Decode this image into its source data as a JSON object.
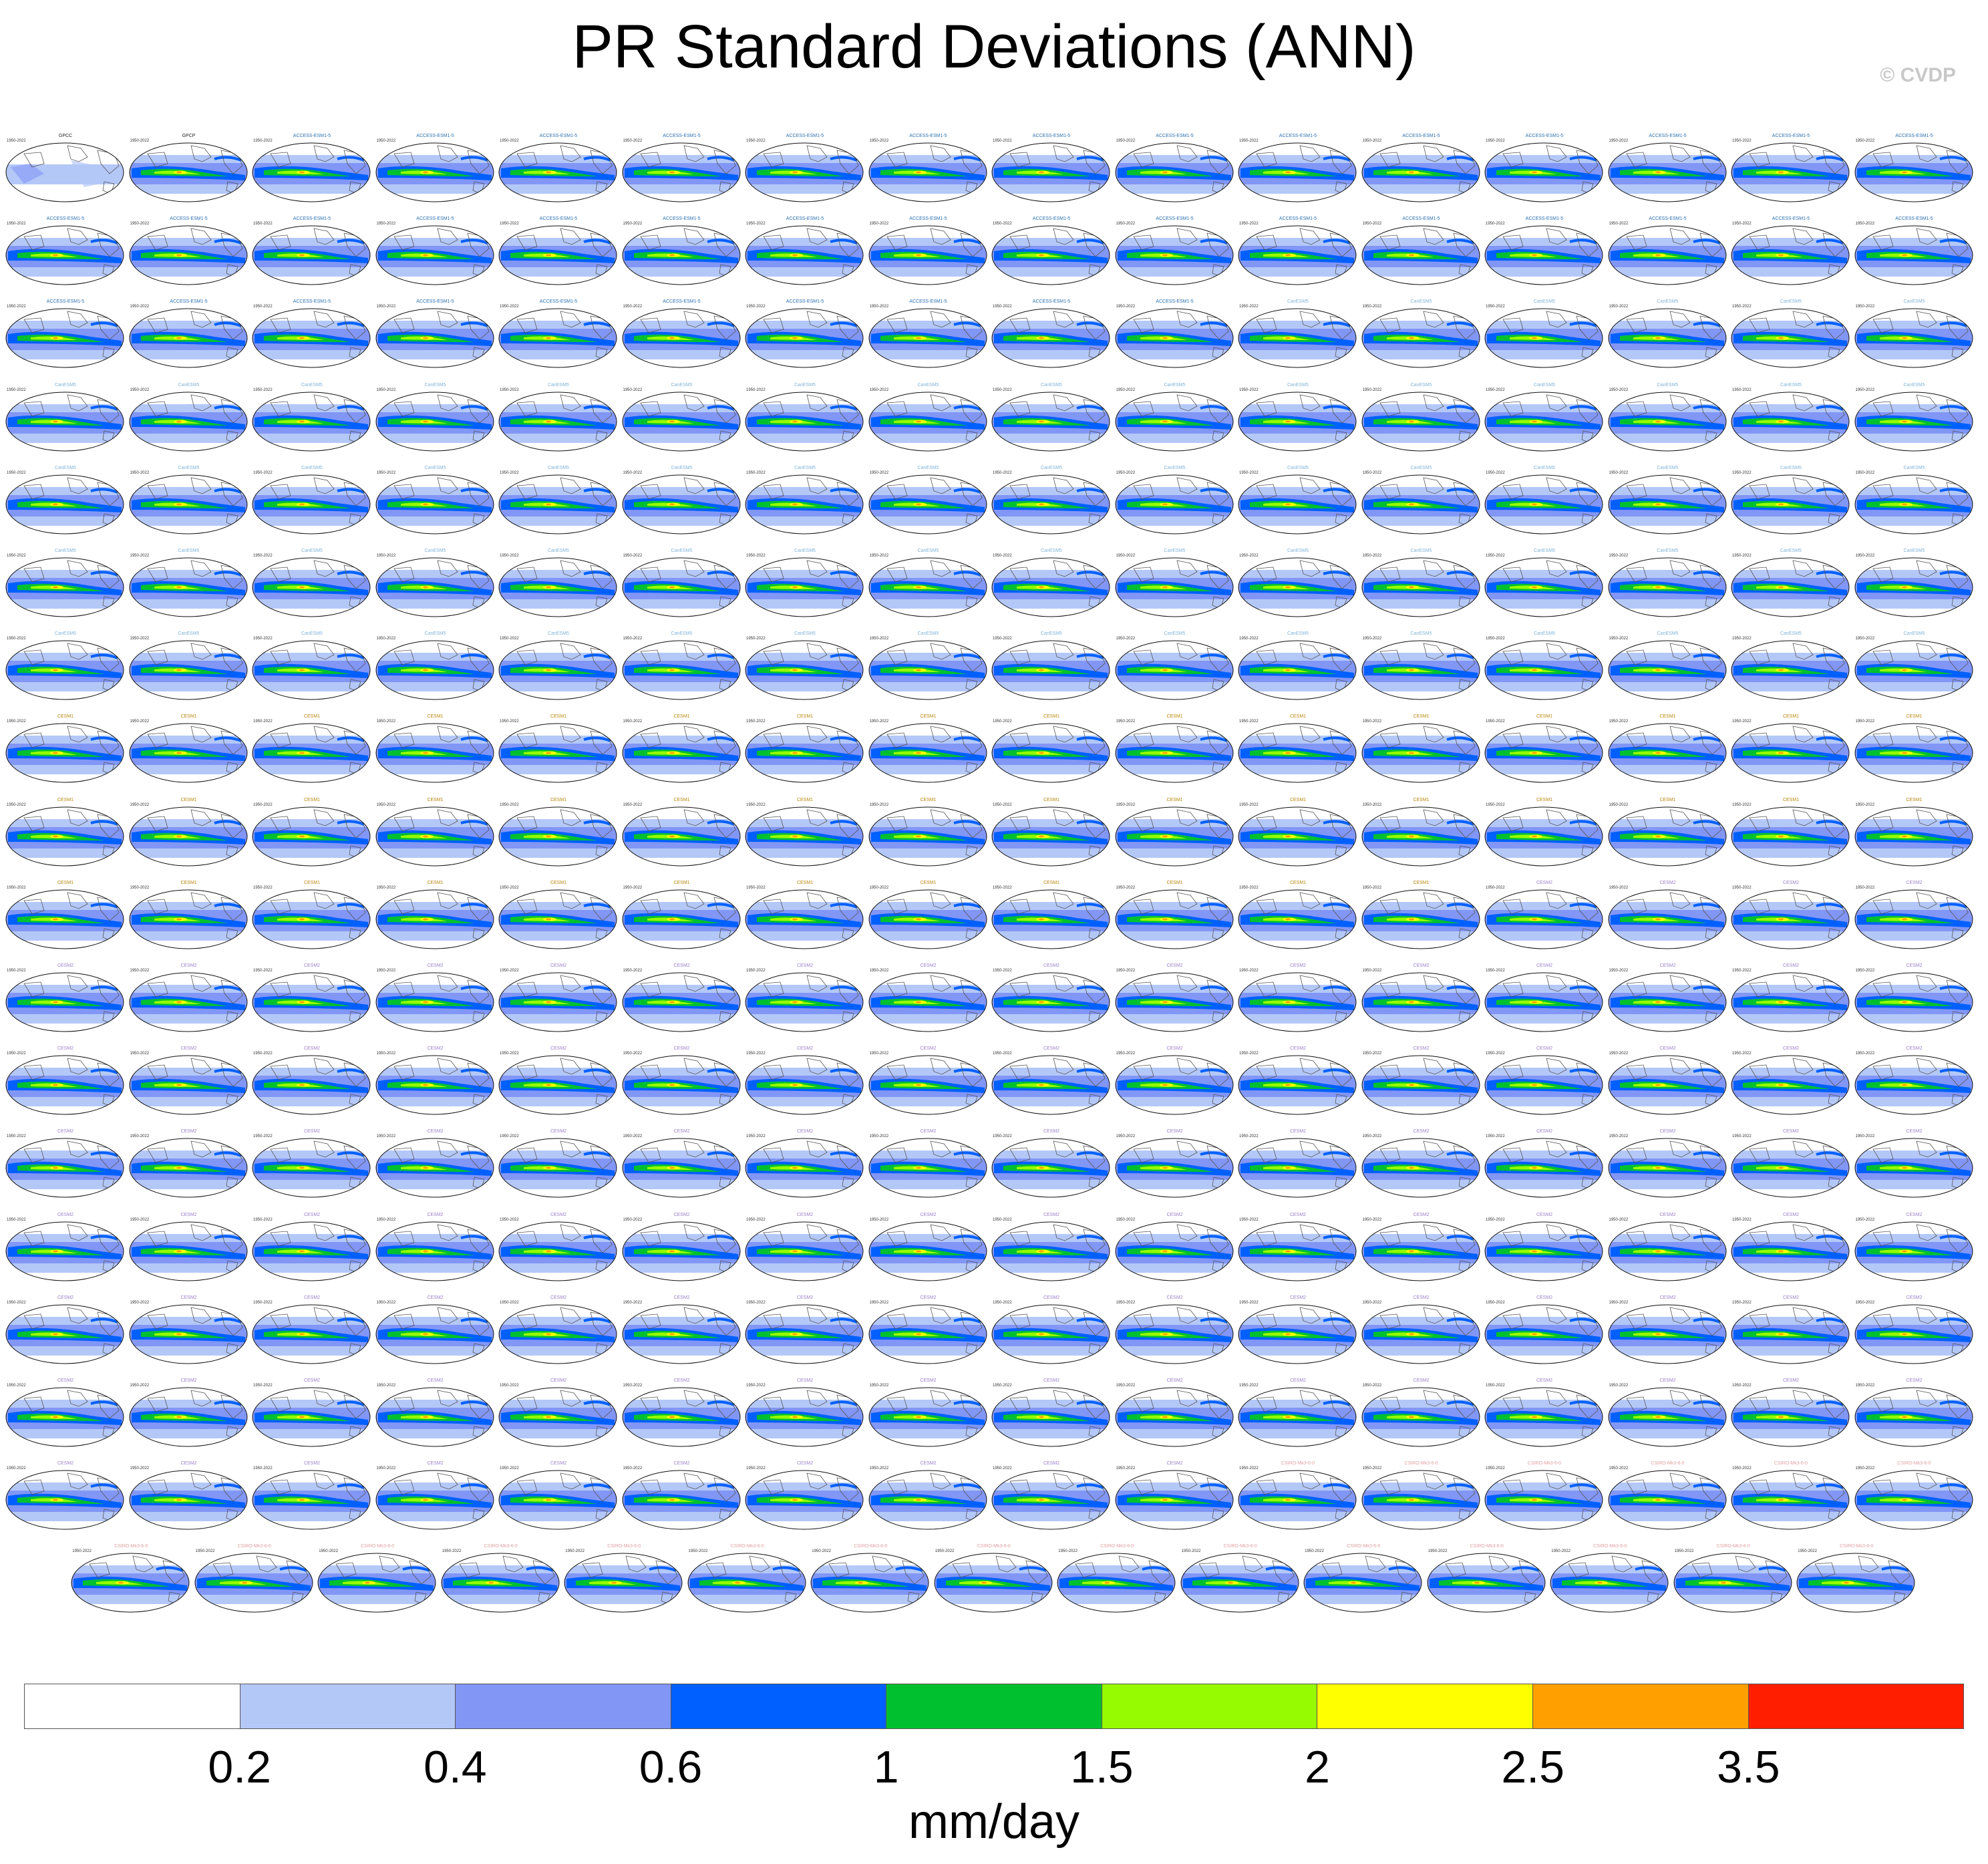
{
  "title": "PR Standard Deviations (ANN)",
  "copyright": "© CVDP",
  "panel_grid": {
    "full_rows": 17,
    "columns": 16,
    "last_row_panels": 15
  },
  "panel_groups": [
    {
      "label": "GPCC",
      "color": "#222222"
    },
    {
      "label": "GPCP",
      "color": "#222222"
    },
    {
      "label": "ACCESS-ESM1-5",
      "color": "#2a6fb0"
    },
    {
      "label": "CanESM5",
      "color": "#7fb3d8"
    },
    {
      "label": "CESM1",
      "color": "#b8860b"
    },
    {
      "label": "CESM2",
      "color": "#9a7fc8"
    },
    {
      "label": "CSIRO-Mk3-6-0",
      "color": "#e0a0a0"
    }
  ],
  "panel_period": "1950-2022",
  "colorbar": {
    "colors": [
      "#ffffff",
      "#b4c8f8",
      "#8296f6",
      "#0060ff",
      "#00c030",
      "#96fa00",
      "#ffff00",
      "#ffa000",
      "#ff1e00"
    ],
    "ticks": [
      "0.2",
      "0.4",
      "0.6",
      "1",
      "1.5",
      "2",
      "2.5",
      "3.5"
    ],
    "units": "mm/day"
  }
}
